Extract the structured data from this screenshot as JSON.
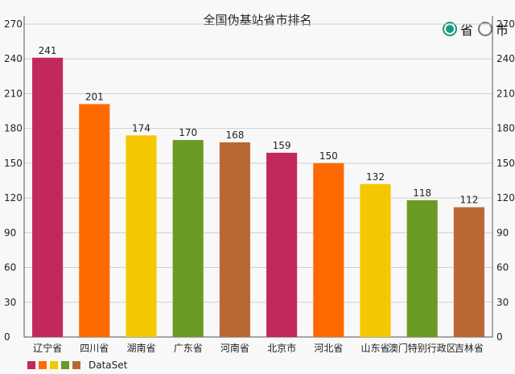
{
  "chart_data": {
    "type": "bar",
    "title": "全国伪基站省市排名",
    "categories": [
      "辽宁省",
      "四川省",
      "湖南省",
      "广东省",
      "河南省",
      "北京市",
      "河北省",
      "山东省",
      "澳门特别行政区",
      "吉林省"
    ],
    "values": [
      241,
      201,
      174,
      170,
      168,
      159,
      150,
      132,
      118,
      112
    ],
    "colors": [
      "#c2285c",
      "#ff6a00",
      "#f4c800",
      "#6a9a24",
      "#b96834",
      "#c2285c",
      "#ff6a00",
      "#f4c800",
      "#6a9a24",
      "#b96834"
    ],
    "ylim": [
      0,
      270
    ],
    "yticks": [
      0,
      30,
      60,
      90,
      120,
      150,
      180,
      210,
      240,
      270
    ],
    "grid": true,
    "legend": {
      "label": "DataSet",
      "colors": [
        "#c2285c",
        "#ff6a00",
        "#f4c800",
        "#6a9a24",
        "#b96834"
      ],
      "placement": "bottom-left"
    }
  },
  "toggle": {
    "options": [
      {
        "label": "省",
        "checked": true
      },
      {
        "label": "市",
        "checked": false
      }
    ],
    "accent": "#1a9a80"
  }
}
